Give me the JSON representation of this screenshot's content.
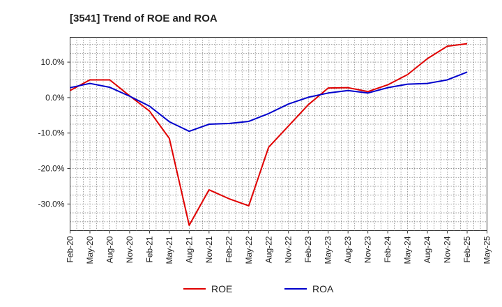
{
  "chart_data": {
    "type": "line",
    "title": "[3541]  Trend of ROE and ROA",
    "xlabel": "",
    "ylabel": "",
    "ylim": [
      -37.5,
      17
    ],
    "grid": true,
    "legend_position": "bottom",
    "y_ticks": [
      {
        "value": 10,
        "label": "10.0%"
      },
      {
        "value": 0,
        "label": "0.0%"
      },
      {
        "value": -10,
        "label": "-10.0%"
      },
      {
        "value": -20,
        "label": "-20.0%"
      },
      {
        "value": -30,
        "label": "-30.0%"
      }
    ],
    "x_ticks": [
      "Feb-20",
      "May-20",
      "Aug-20",
      "Nov-20",
      "Feb-21",
      "May-21",
      "Aug-21",
      "Nov-21",
      "Feb-22",
      "May-22",
      "Aug-22",
      "Nov-22",
      "Feb-23",
      "May-23",
      "Aug-23",
      "Nov-23",
      "Feb-24",
      "May-24",
      "Aug-24",
      "Nov-24",
      "Feb-25",
      "May-25"
    ],
    "x": [
      "Feb-20",
      "May-20",
      "Aug-20",
      "Nov-20",
      "Feb-21",
      "May-21",
      "Aug-21",
      "Nov-21",
      "Feb-22",
      "May-22",
      "Aug-22",
      "Nov-22",
      "Feb-23",
      "May-23",
      "Aug-23",
      "Nov-23",
      "Feb-24",
      "May-24",
      "Aug-24",
      "Nov-24",
      "Feb-25"
    ],
    "series": [
      {
        "name": "ROE",
        "color": "#e00000",
        "values": [
          2.0,
          5.0,
          5.0,
          0.5,
          -3.8,
          -11.5,
          -36.0,
          -26.0,
          -28.5,
          -30.5,
          -14.0,
          -8.0,
          -2.0,
          2.7,
          2.8,
          1.7,
          3.6,
          6.5,
          11.0,
          14.5,
          15.2
        ]
      },
      {
        "name": "ROA",
        "color": "#0000cc",
        "values": [
          2.8,
          4.0,
          2.9,
          0.4,
          -2.4,
          -6.8,
          -9.5,
          -7.5,
          -7.3,
          -6.7,
          -4.5,
          -1.8,
          0.1,
          1.3,
          2.0,
          1.3,
          2.8,
          3.8,
          4.0,
          5.0,
          7.2
        ]
      }
    ]
  }
}
